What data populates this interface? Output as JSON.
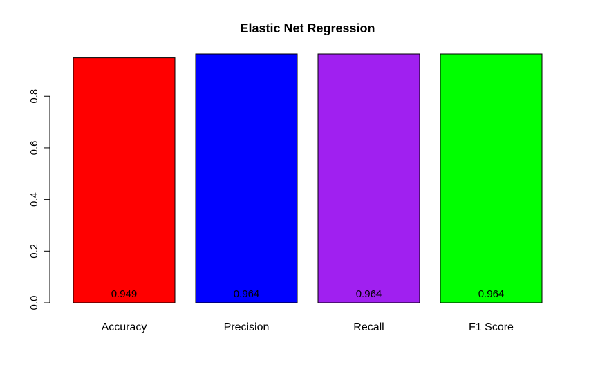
{
  "chart_data": {
    "type": "bar",
    "title": "Elastic Net Regression",
    "xlabel": "",
    "ylabel": "",
    "categories": [
      "Accuracy",
      "Precision",
      "Recall",
      "F1 Score"
    ],
    "values": [
      0.949,
      0.964,
      0.964,
      0.964
    ],
    "value_labels": [
      "0.949",
      "0.964",
      "0.964",
      "0.964"
    ],
    "colors": [
      "#ff0000",
      "#0000ff",
      "#a020f0",
      "#00ff00"
    ],
    "ylim": [
      0,
      0.964
    ],
    "y_ticks": [
      0.0,
      0.2,
      0.4,
      0.6,
      0.8
    ],
    "y_tick_labels": [
      "0.0",
      "0.2",
      "0.4",
      "0.6",
      "0.8"
    ],
    "grid": false,
    "legend": "none"
  }
}
